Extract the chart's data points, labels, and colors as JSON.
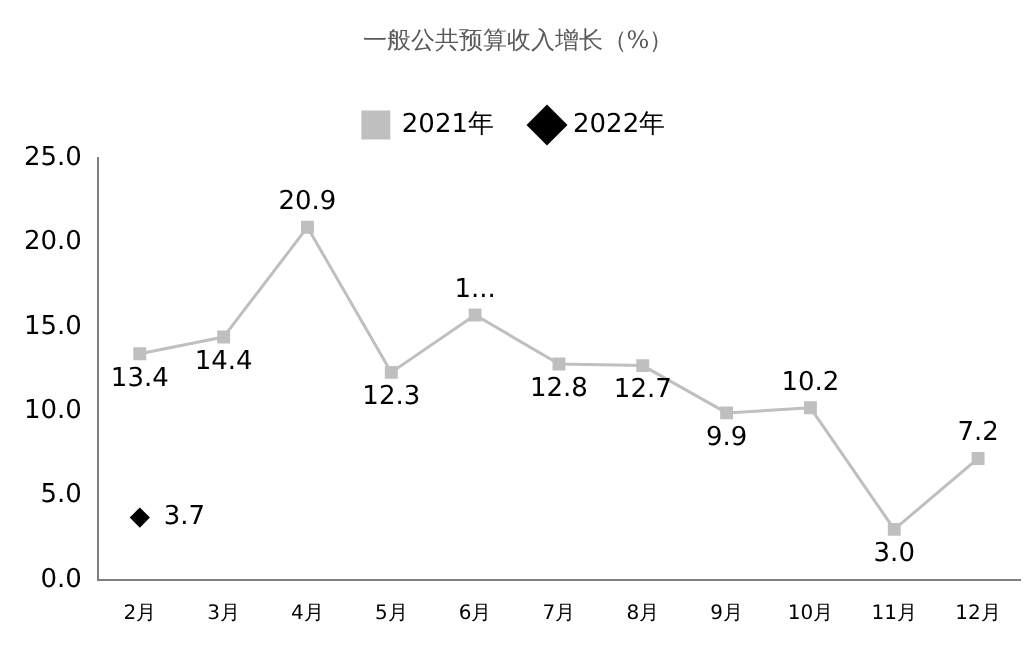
{
  "chart_data": {
    "type": "line",
    "title": "一般公共预算收入增长（%）",
    "categories": [
      "2月",
      "3月",
      "4月",
      "5月",
      "6月",
      "7月",
      "8月",
      "9月",
      "10月",
      "11月",
      "12月"
    ],
    "series": [
      {
        "name": "2021年",
        "color": "#bfbfbf",
        "marker": "square",
        "values": [
          13.4,
          14.4,
          20.9,
          12.3,
          15.7,
          12.8,
          12.7,
          9.9,
          10.2,
          3.0,
          7.2
        ],
        "value_labels": [
          "13.4",
          "14.4",
          "20.9",
          "12.3",
          "1...",
          "12.8",
          "12.7",
          "9.9",
          "10.2",
          "3.0",
          "7.2"
        ]
      },
      {
        "name": "2022年",
        "color": "#000000",
        "marker": "diamond",
        "values": [
          3.7,
          null,
          null,
          null,
          null,
          null,
          null,
          null,
          null,
          null,
          null
        ],
        "value_labels": [
          "3.7",
          null,
          null,
          null,
          null,
          null,
          null,
          null,
          null,
          null,
          null
        ]
      }
    ],
    "ylim": [
      0,
      25
    ],
    "yticks": [
      {
        "value": 0,
        "label": "0.0"
      },
      {
        "value": 5,
        "label": "5.0"
      },
      {
        "value": 10,
        "label": "10.0"
      },
      {
        "value": 15,
        "label": "15.0"
      },
      {
        "value": 20,
        "label": "20.0"
      },
      {
        "value": 25,
        "label": "25.0"
      }
    ],
    "grid": false,
    "legend": "top"
  }
}
